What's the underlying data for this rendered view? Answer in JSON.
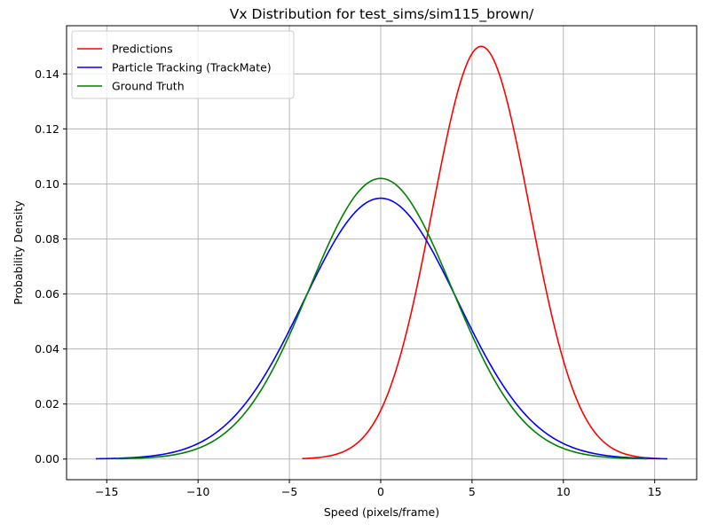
{
  "chart_data": {
    "type": "line",
    "title": "Vx Distribution for test_sims/sim115_brown/",
    "xlabel": "Speed (pixels/frame)",
    "ylabel": "Probability Density",
    "xlim": [
      -17.2,
      17.3
    ],
    "ylim": [
      -0.0075,
      0.1575
    ],
    "xticks": [
      -15,
      -10,
      -5,
      0,
      5,
      10,
      15
    ],
    "xtick_labels": [
      "−15",
      "−10",
      "−5",
      "0",
      "5",
      "10",
      "15"
    ],
    "yticks": [
      0.0,
      0.02,
      0.04,
      0.06,
      0.08,
      0.1,
      0.12,
      0.14
    ],
    "ytick_labels": [
      "0.00",
      "0.02",
      "0.04",
      "0.06",
      "0.08",
      "0.10",
      "0.12",
      "0.14"
    ],
    "grid": true,
    "legend_position": "top-left",
    "series": [
      {
        "name": "Predictions",
        "color": "#ff0000",
        "distribution": "normal",
        "mean": 5.5,
        "std": 2.66,
        "peak_density": 0.15,
        "x_range": [
          -4.3,
          15.3
        ]
      },
      {
        "name": "Particle Tracking (TrackMate)",
        "color": "#0000ff",
        "distribution": "normal",
        "mean": 0.0,
        "std": 4.21,
        "peak_density": 0.0948,
        "x_range": [
          -15.6,
          15.7
        ]
      },
      {
        "name": "Ground Truth",
        "color": "#008000",
        "distribution": "normal",
        "mean": 0.0,
        "std": 3.91,
        "peak_density": 0.102,
        "x_range": [
          -14.5,
          14.6
        ]
      }
    ]
  }
}
